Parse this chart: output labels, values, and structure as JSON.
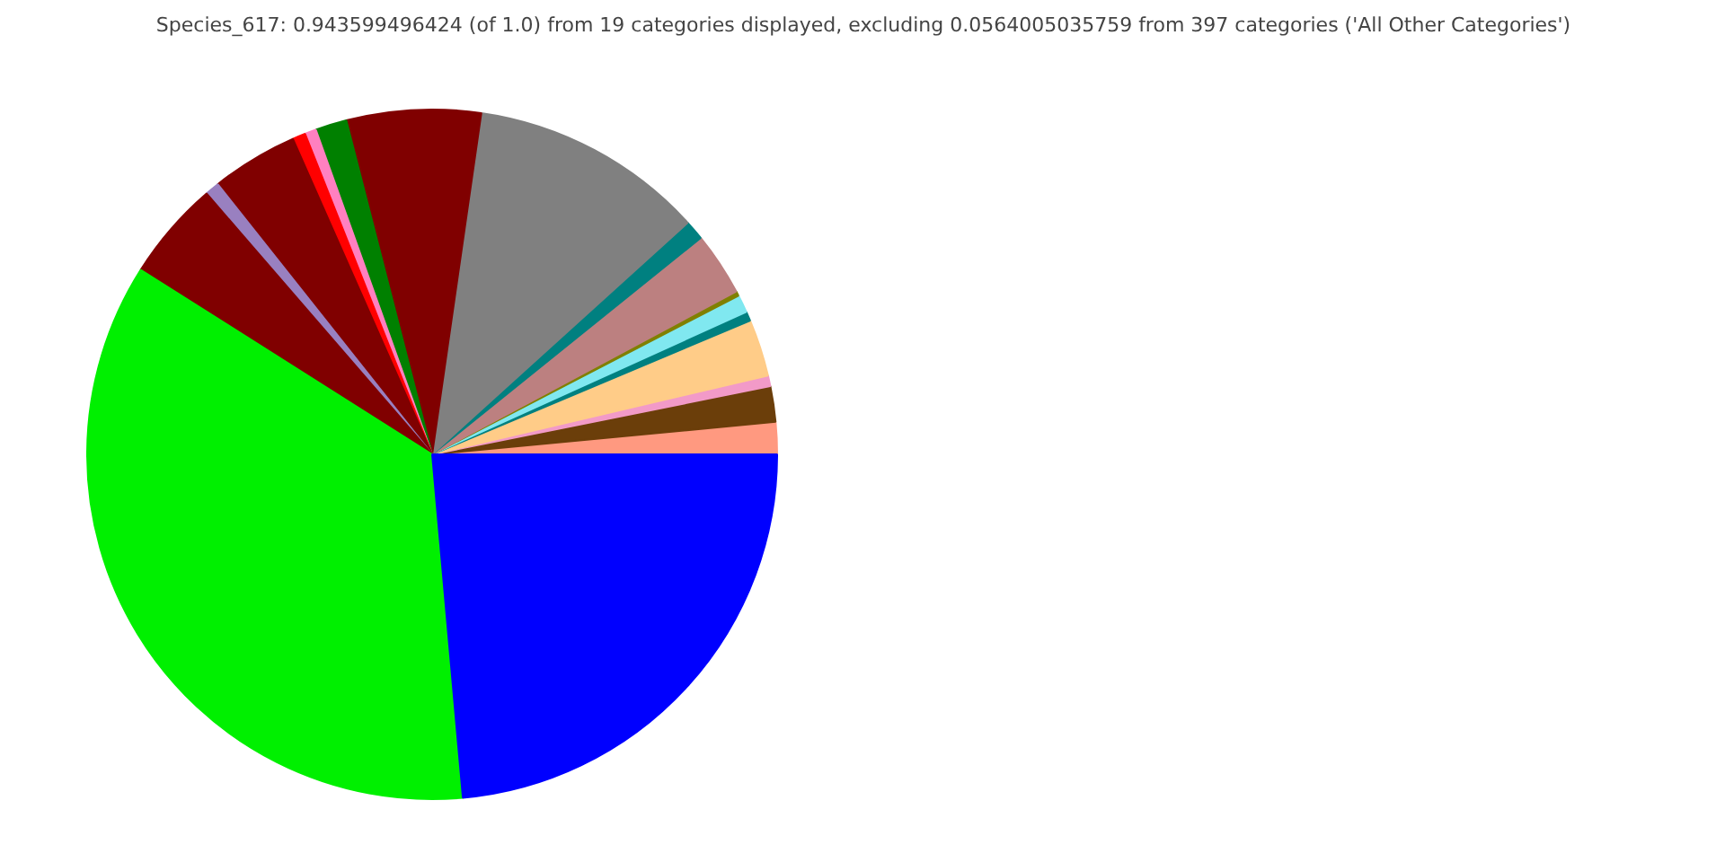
{
  "chart_data": {
    "type": "pie",
    "title": "Species_617: 0.943599496424 (of 1.0) from 19 categories displayed, excluding 0.0564005035759 from 397 categories ('All Other Categories')",
    "categories": [
      null,
      null,
      null,
      null,
      null,
      null,
      null,
      null,
      null,
      null,
      null,
      null,
      null,
      null,
      null,
      null,
      null,
      null,
      null
    ],
    "values": [
      1.5,
      1.67,
      0.5,
      2.67,
      0.44,
      0.83,
      0.22,
      2.97,
      0.92,
      11.0,
      6.28,
      1.47,
      0.53,
      0.61,
      4.06,
      0.67,
      4.67,
      35.4,
      23.58
    ],
    "colors": [
      "#ff9980",
      "#6b3e0a",
      "#f29ac8",
      "#ffcc88",
      "#008080",
      "#80e8f0",
      "#808000",
      "#bc8080",
      "#008080",
      "#808080",
      "#800000",
      "#008000",
      "#ff80c0",
      "#ff0000",
      "#800000",
      "#9980c0",
      "#800000",
      "#00f000",
      "#0000ff"
    ]
  }
}
